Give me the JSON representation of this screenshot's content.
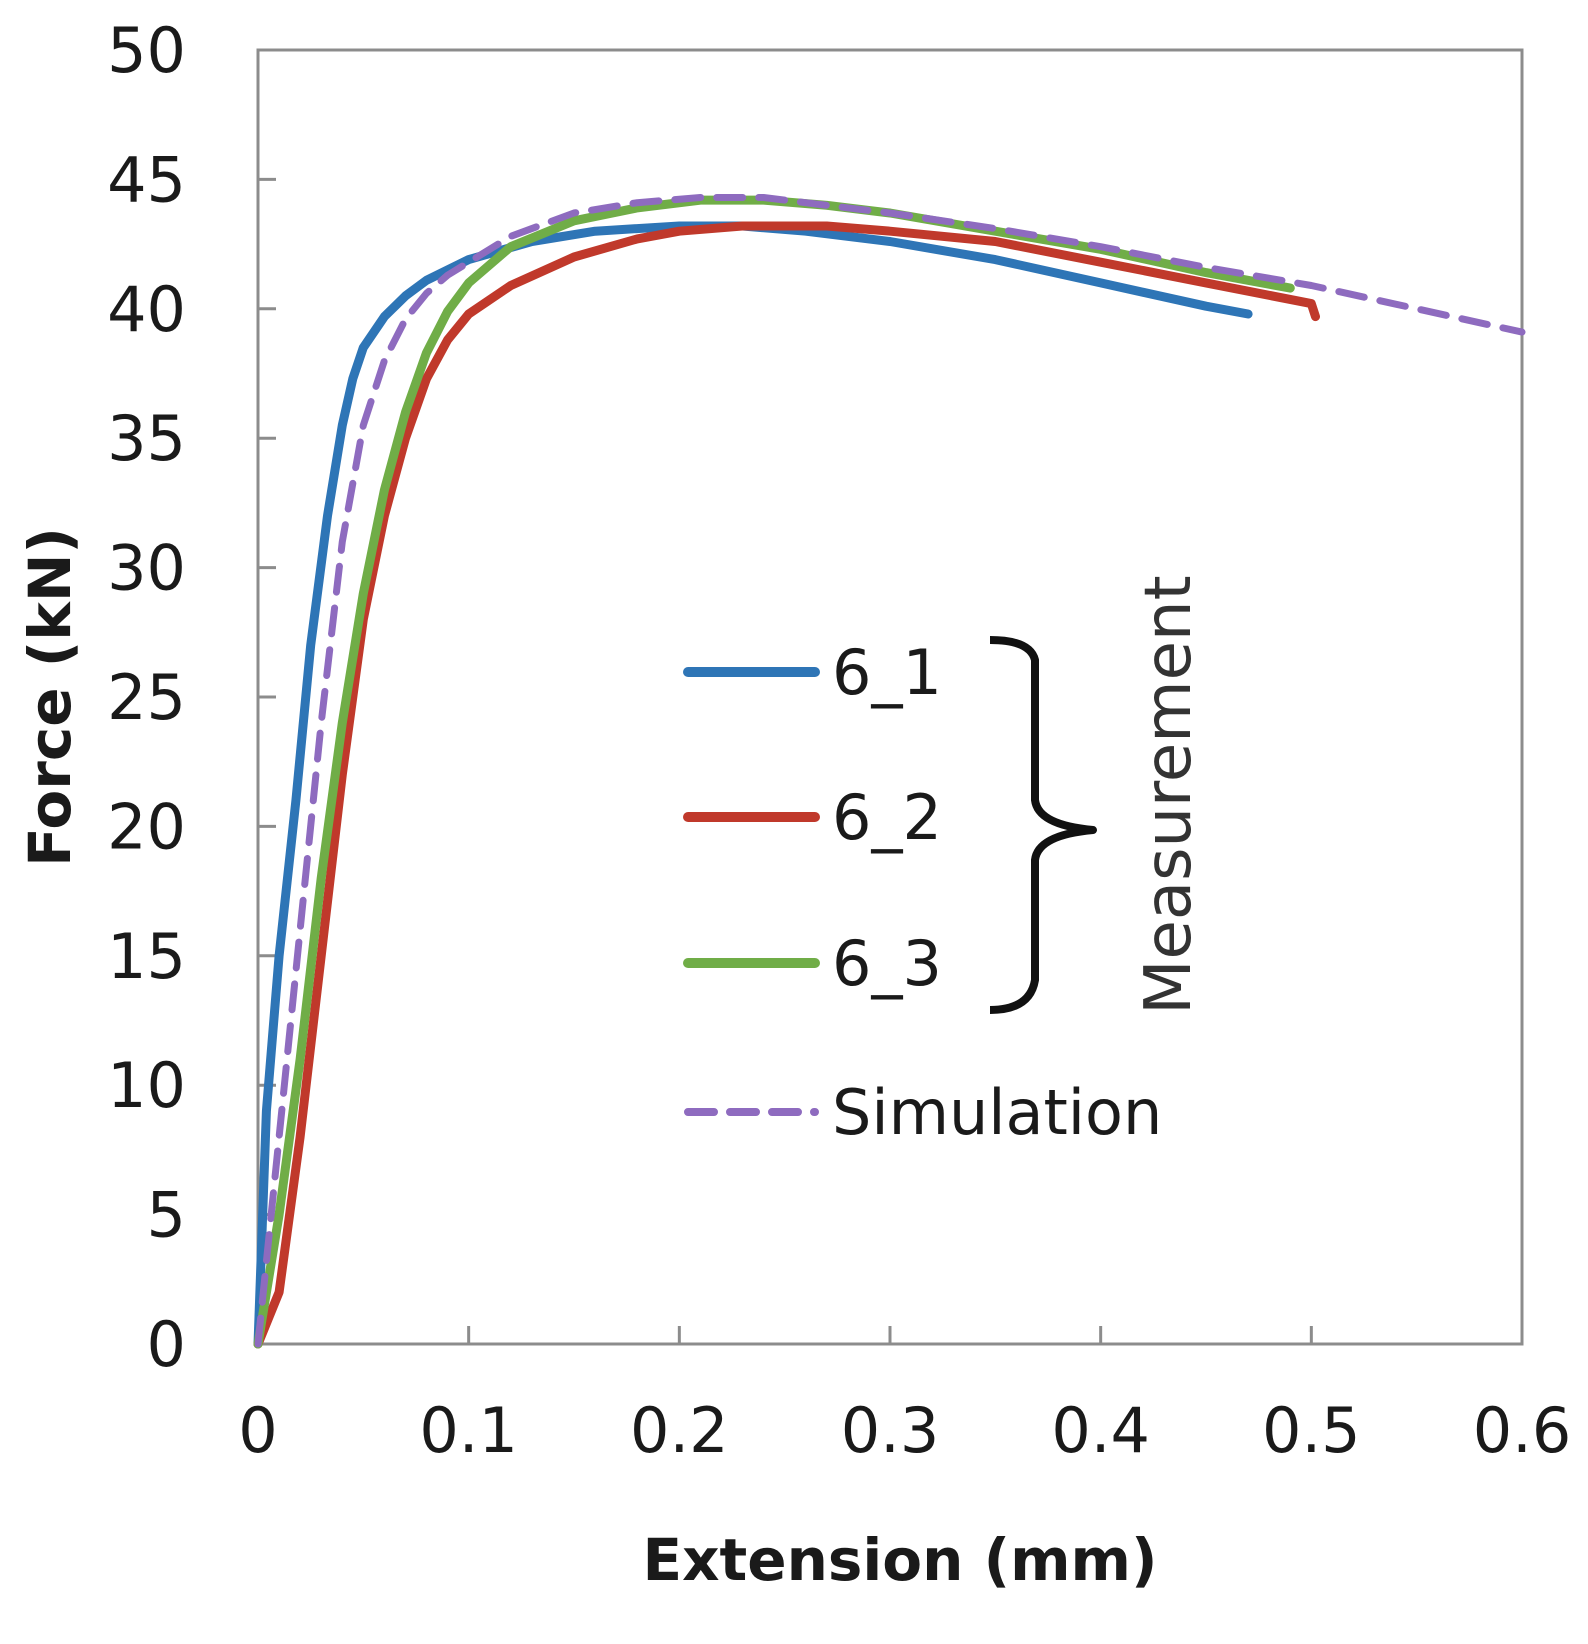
{
  "chart_data": {
    "type": "line",
    "title": "",
    "xlabel": "Extension (mm)",
    "ylabel": "Force (kN)",
    "xlim": [
      0,
      0.6
    ],
    "ylim": [
      0,
      50
    ],
    "x_ticks": [
      "0",
      "0.1",
      "0.2",
      "0.3",
      "0.4",
      "0.5",
      "0.6"
    ],
    "y_ticks": [
      "0",
      "5",
      "10",
      "15",
      "20",
      "25",
      "30",
      "35",
      "40",
      "45",
      "50"
    ],
    "x_tick_values": [
      0,
      0.1,
      0.2,
      0.3,
      0.4,
      0.5,
      0.6
    ],
    "y_tick_values": [
      0,
      5,
      10,
      15,
      20,
      25,
      30,
      35,
      40,
      45,
      50
    ],
    "grid": false,
    "legend_position": "center-right",
    "legend_group_label": "Measurement",
    "series": [
      {
        "name": "6_1",
        "color": "#2e75b6",
        "style": "solid",
        "x": [
          0,
          0.004,
          0.01,
          0.018,
          0.025,
          0.033,
          0.04,
          0.045,
          0.05,
          0.06,
          0.07,
          0.08,
          0.1,
          0.13,
          0.16,
          0.2,
          0.23,
          0.26,
          0.3,
          0.35,
          0.4,
          0.45,
          0.47
        ],
        "y": [
          0,
          9,
          15,
          21,
          27,
          32,
          35.5,
          37.3,
          38.5,
          39.7,
          40.5,
          41.1,
          41.9,
          42.6,
          43.0,
          43.2,
          43.2,
          43.0,
          42.6,
          41.9,
          41.0,
          40.1,
          39.8
        ]
      },
      {
        "name": "6_2",
        "color": "#c0392b",
        "style": "solid",
        "x": [
          0,
          0.01,
          0.02,
          0.03,
          0.04,
          0.05,
          0.06,
          0.07,
          0.08,
          0.09,
          0.1,
          0.12,
          0.15,
          0.18,
          0.2,
          0.23,
          0.27,
          0.3,
          0.35,
          0.4,
          0.45,
          0.5,
          0.502
        ],
        "y": [
          0,
          2,
          8,
          15,
          22,
          28,
          32,
          35,
          37.3,
          38.8,
          39.8,
          40.9,
          42.0,
          42.7,
          43.0,
          43.2,
          43.2,
          43.0,
          42.6,
          41.8,
          41.0,
          40.2,
          39.7
        ]
      },
      {
        "name": "6_3",
        "color": "#70ad47",
        "style": "solid",
        "x": [
          0,
          0.01,
          0.02,
          0.03,
          0.04,
          0.05,
          0.06,
          0.07,
          0.08,
          0.09,
          0.1,
          0.12,
          0.15,
          0.18,
          0.21,
          0.24,
          0.27,
          0.3,
          0.35,
          0.4,
          0.45,
          0.49
        ],
        "y": [
          0,
          5,
          11,
          18,
          24,
          29,
          33,
          36,
          38.3,
          39.9,
          41.0,
          42.4,
          43.4,
          43.9,
          44.2,
          44.2,
          44.0,
          43.7,
          43.0,
          42.3,
          41.4,
          40.8
        ]
      },
      {
        "name": "Simulation",
        "color": "#8e6bbf",
        "style": "dashed",
        "x": [
          0,
          0.01,
          0.02,
          0.03,
          0.04,
          0.05,
          0.06,
          0.07,
          0.08,
          0.09,
          0.1,
          0.12,
          0.15,
          0.18,
          0.21,
          0.24,
          0.27,
          0.3,
          0.35,
          0.4,
          0.45,
          0.5,
          0.55,
          0.6
        ],
        "y": [
          0,
          8,
          16,
          24,
          31,
          35.5,
          38,
          39.6,
          40.6,
          41.3,
          41.8,
          42.8,
          43.7,
          44.1,
          44.3,
          44.3,
          44.0,
          43.7,
          43.1,
          42.4,
          41.6,
          40.9,
          40.0,
          39.1
        ]
      }
    ]
  }
}
